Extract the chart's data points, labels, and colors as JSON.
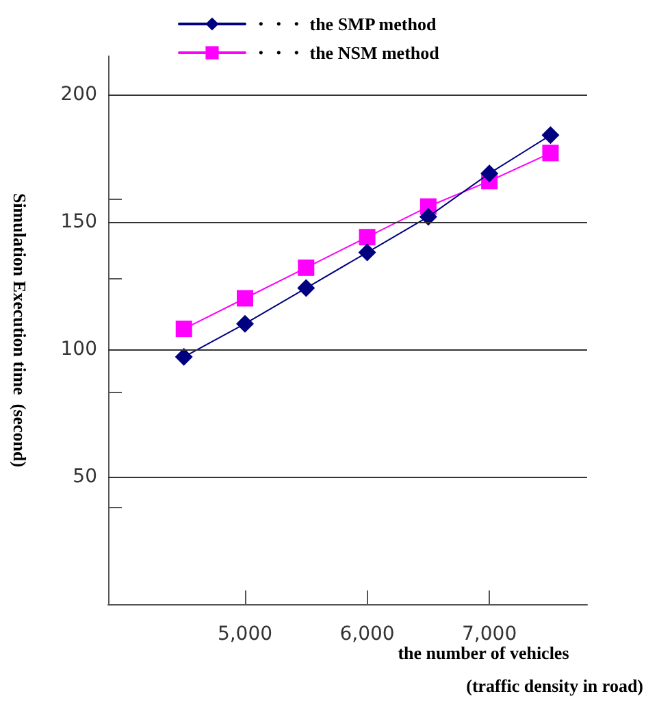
{
  "chart_data": {
    "type": "line",
    "xlabel": "the number of vehicles\n(traffic density in road)",
    "ylabel": "Simulation Execution time  (second)",
    "x": [
      4500,
      5000,
      5500,
      6000,
      6500,
      7000,
      7500
    ],
    "series": [
      {
        "name": "・・・ the SMP method",
        "color": "#000080",
        "marker": "diamond",
        "values": [
          97,
          110,
          124,
          138,
          152,
          169,
          184
        ]
      },
      {
        "name": "・・・ the NSM method",
        "color": "#ff00ff",
        "marker": "square",
        "values": [
          108,
          120,
          132,
          144,
          156,
          166,
          177
        ]
      }
    ],
    "xlim": [
      3880,
      7800
    ],
    "xticks": [
      {
        "value": 5000,
        "label": "5,000"
      },
      {
        "value": 6000,
        "label": "6,000"
      },
      {
        "value": 7000,
        "label": "7,000"
      }
    ],
    "ylim": [
      0,
      215
    ],
    "yticks": [
      {
        "value": 38,
        "label": null
      },
      50,
      {
        "value": 83,
        "label": null
      },
      100,
      {
        "value": 128,
        "label": null
      },
      150,
      {
        "value": 159,
        "label": null
      },
      200
    ],
    "grid": "y",
    "legend": "top",
    "line_style": "solid"
  }
}
